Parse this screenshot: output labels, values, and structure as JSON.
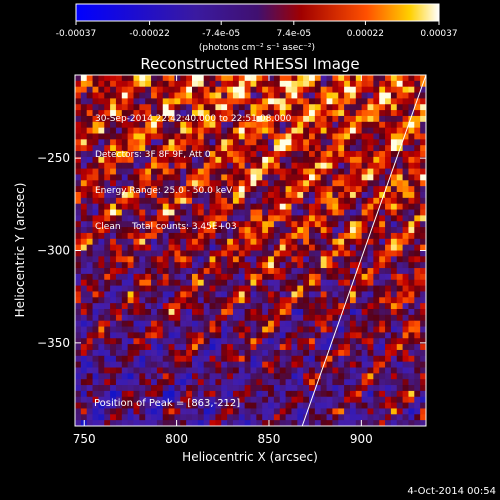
{
  "colorbar": {
    "tick_labels": [
      "-0.00037",
      "-0.00022",
      "-7.4e-05",
      "7.4e-05",
      "0.00022",
      "0.00037"
    ],
    "unit_label": "(photons cm⁻² s⁻¹ asec⁻²)",
    "range": [
      -0.00037,
      0.00037
    ]
  },
  "image": {
    "title": "Reconstructed RHESSI Image",
    "xlabel": "Heliocentric X (arcsec)",
    "ylabel": "Heliocentric Y (arcsec)",
    "x_ticks": [
      "750",
      "800",
      "850",
      "900"
    ],
    "y_ticks": [
      "-250",
      "-300",
      "-350"
    ],
    "x_range": [
      745,
      935
    ],
    "y_range": [
      -395,
      -205
    ],
    "annotations": [
      "30-Sep-2014 22:42:40.000 to 22:51:08.000",
      "Detectors: 3F 8F 9F, Att 0",
      "Energy Range: 25.0 - 50.0 keV",
      "Clean    Total counts: 3.45E+03"
    ],
    "peak_label": "Position of Peak = [863,-212]",
    "limb_line": [
      [
        868,
        -395
      ],
      [
        935,
        -205
      ]
    ]
  },
  "timestamp": "4-Oct-2014 00:54"
}
